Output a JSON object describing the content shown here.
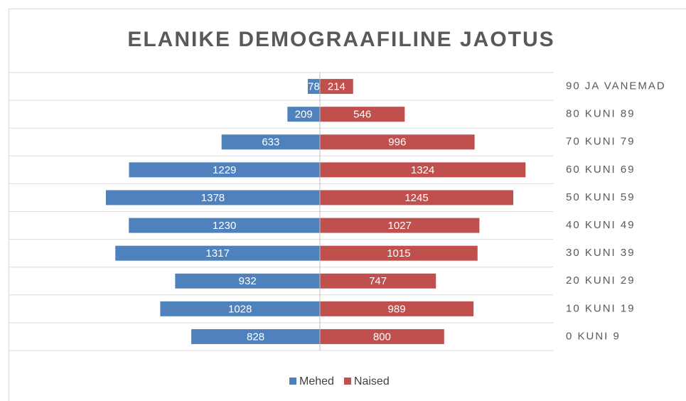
{
  "chart_data": {
    "type": "pyramid",
    "title": "ELANIKE DEMOGRAAFILINE JAOTUS",
    "categories": [
      "90 JA VANEMAD",
      "80 KUNI 89",
      "70 KUNI 79",
      "60 KUNI 69",
      "50 KUNI 59",
      "40 KUNI 49",
      "30 KUNI 39",
      "20 KUNI 29",
      "10 KUNI 19",
      "0 KUNI 9"
    ],
    "series": [
      {
        "name": "Mehed",
        "color": "#4f81bd",
        "side": "left",
        "values": [
          78,
          209,
          633,
          1229,
          1378,
          1230,
          1317,
          932,
          1028,
          828
        ]
      },
      {
        "name": "Naised",
        "color": "#c0504d",
        "side": "right",
        "values": [
          214,
          546,
          996,
          1324,
          1245,
          1027,
          1015,
          747,
          989,
          800
        ]
      }
    ],
    "grid": true,
    "legend": "bottom"
  }
}
